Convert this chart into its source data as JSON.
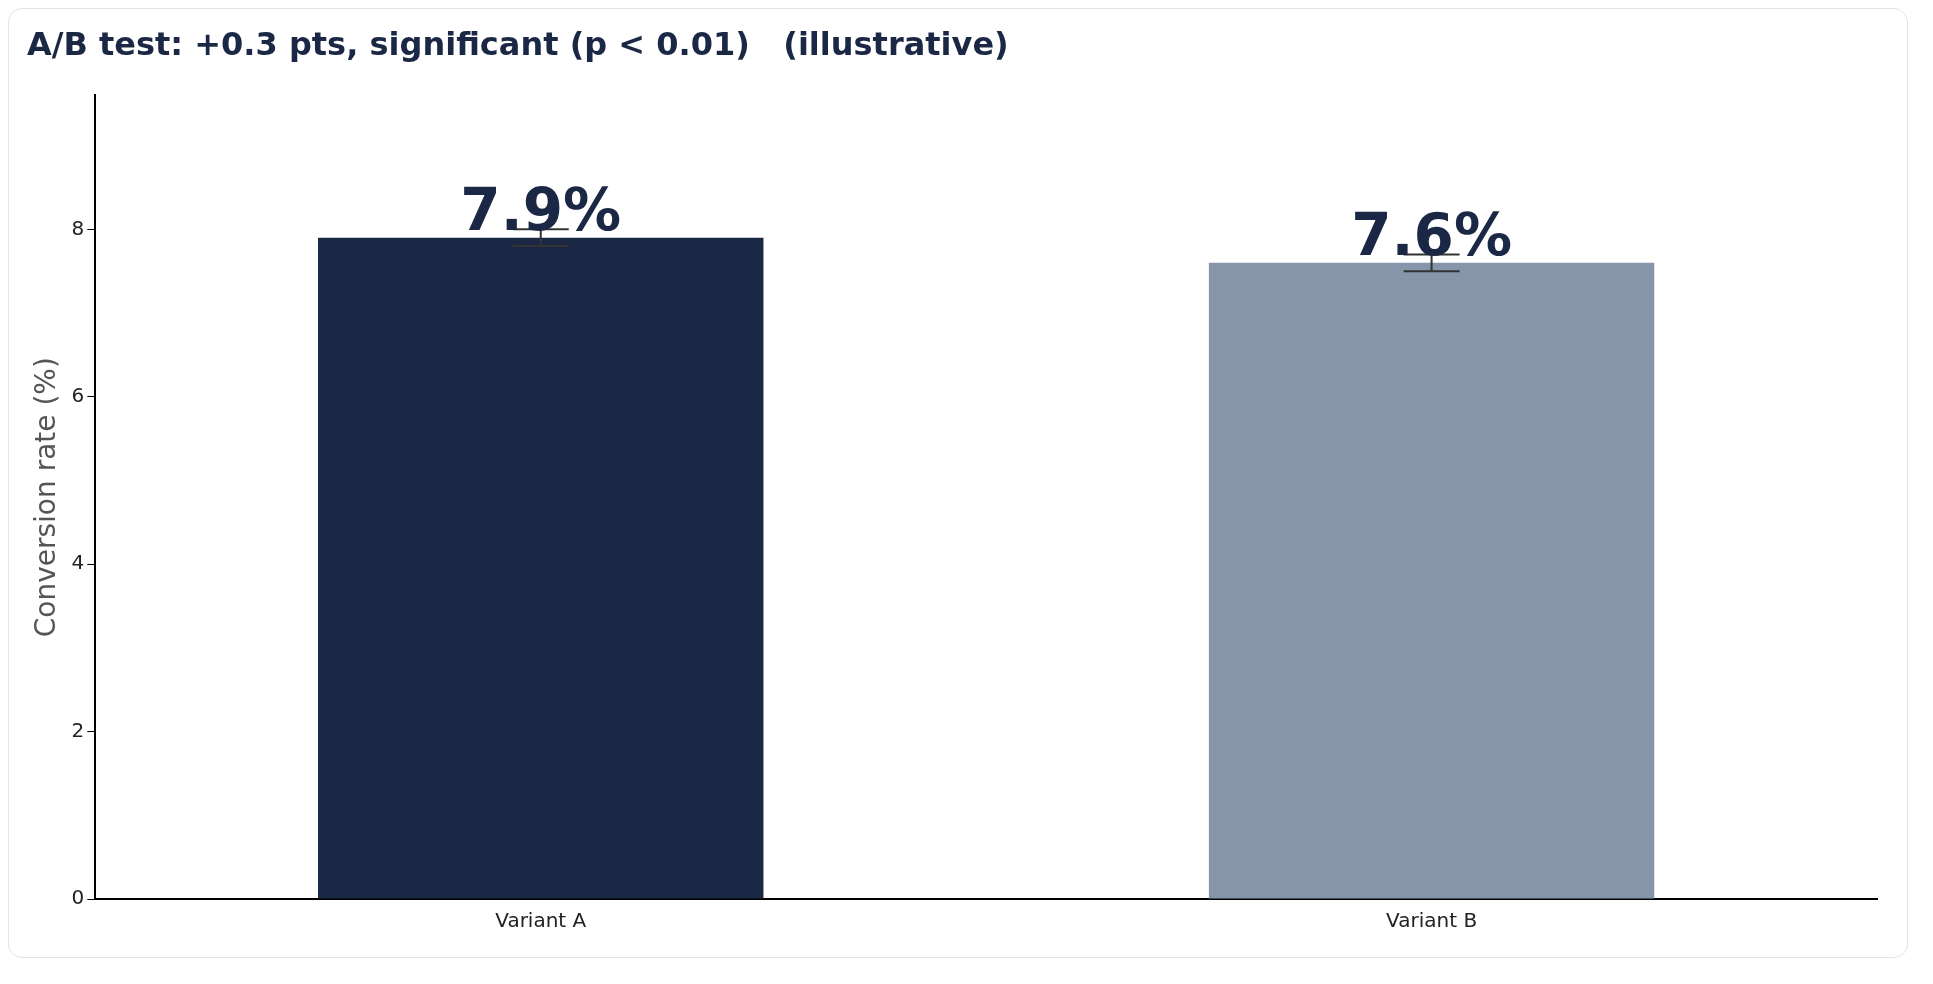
{
  "chart_data": {
    "type": "bar",
    "title": "A/B test: +0.3 pts, significant (p < 0.01)   (illustrative)",
    "ylabel": "Conversion rate (%)",
    "categories": [
      "Variant A",
      "Variant B"
    ],
    "values": [
      7.9,
      7.6
    ],
    "colors": [
      "#1b2845",
      "#8795ab"
    ],
    "errors": [
      0.1,
      0.1
    ],
    "value_labels": [
      "7.9%",
      "7.6%"
    ],
    "ylim": [
      0,
      9.6
    ],
    "yticks": [
      0,
      2,
      4,
      6,
      8
    ],
    "grid": false,
    "legend": false
  }
}
